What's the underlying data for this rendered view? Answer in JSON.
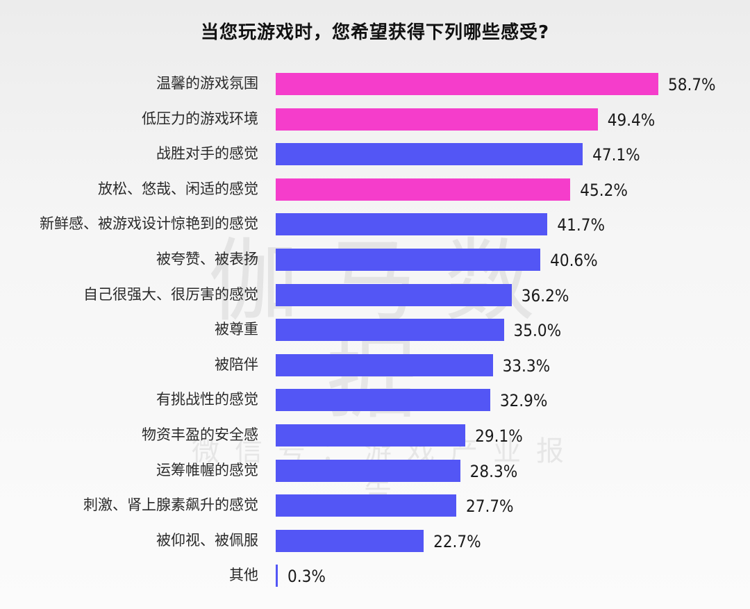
{
  "title": "当您玩游戏时，您希望获得下列哪些感受?",
  "watermark": {
    "main": "伽马数据",
    "sub": "微信号：游戏产业报告"
  },
  "colors": {
    "highlight": "#f53dcb",
    "default": "#5356f5"
  },
  "chart_data": {
    "type": "bar",
    "orientation": "horizontal",
    "title": "当您玩游戏时，您希望获得下列哪些感受?",
    "xlabel": "",
    "ylabel": "",
    "grid": false,
    "legend": null,
    "xlim": [
      0,
      60
    ],
    "categories": [
      "温馨的游戏氛围",
      "低压力的游戏环境",
      "战胜对手的感觉",
      "放松、悠哉、闲适的感觉",
      "新鲜感、被游戏设计惊艳到的感觉",
      "被夸赞、被表扬",
      "自己很强大、很厉害的感觉",
      "被尊重",
      "被陪伴",
      "有挑战性的感觉",
      "物资丰盈的安全感",
      "运筹帷幄的感觉",
      "刺激、肾上腺素飙升的感觉",
      "被仰视、被佩服",
      "其他"
    ],
    "values": [
      58.7,
      49.4,
      47.1,
      45.2,
      41.7,
      40.6,
      36.2,
      35.0,
      33.3,
      32.9,
      29.1,
      28.3,
      27.7,
      22.7,
      0.3
    ],
    "value_labels": [
      "58.7%",
      "49.4%",
      "47.1%",
      "45.2%",
      "41.7%",
      "40.6%",
      "36.2%",
      "35.0%",
      "33.3%",
      "32.9%",
      "29.1%",
      "28.3%",
      "27.7%",
      "22.7%",
      "0.3%"
    ],
    "highlighted": [
      true,
      true,
      false,
      true,
      false,
      false,
      false,
      false,
      false,
      false,
      false,
      false,
      false,
      false,
      false
    ],
    "bar_colors": [
      "#f53dcb",
      "#f53dcb",
      "#5356f5",
      "#f53dcb",
      "#5356f5",
      "#5356f5",
      "#5356f5",
      "#5356f5",
      "#5356f5",
      "#5356f5",
      "#5356f5",
      "#5356f5",
      "#5356f5",
      "#5356f5",
      "#5356f5"
    ]
  }
}
